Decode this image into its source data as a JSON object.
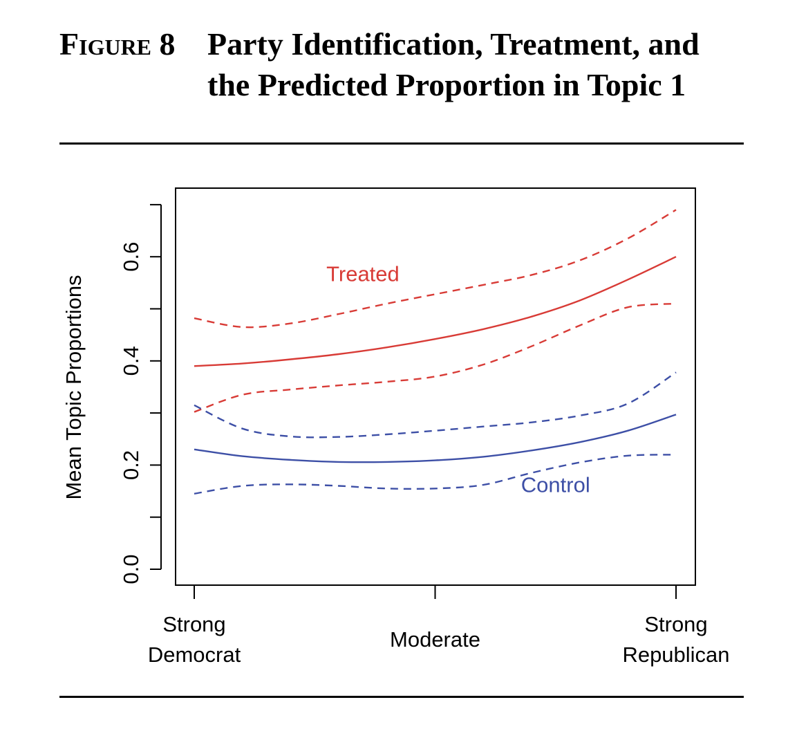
{
  "figure": {
    "label_first": "F",
    "label_smallcaps": "igure",
    "label_number": " 8",
    "title": "Party Identification, Treatment, and the Predicted Proportion in Topic 1"
  },
  "chart_data": {
    "type": "line",
    "title": "",
    "xlabel": "",
    "ylabel": "Mean Topic Proportions",
    "xlim": [
      0,
      1
    ],
    "ylim": [
      0,
      0.7
    ],
    "x_ticks": [
      {
        "value": 0.0,
        "lines": [
          "Strong",
          "Democrat"
        ]
      },
      {
        "value": 0.5,
        "lines": [
          "Moderate"
        ]
      },
      {
        "value": 1.0,
        "lines": [
          "Strong",
          "Republican"
        ]
      }
    ],
    "y_ticks": [
      0,
      0.1,
      0.2,
      0.3,
      0.4,
      0.5,
      0.6,
      0.7
    ],
    "y_tick_labels": [
      {
        "value": 0.0,
        "label": "0.0"
      },
      {
        "value": 0.2,
        "label": "0.2"
      },
      {
        "value": 0.4,
        "label": "0.4"
      },
      {
        "value": 0.6,
        "label": "0.6"
      }
    ],
    "grid": false,
    "legend": "none (inline labels)",
    "colors": {
      "treated": "#d83b36",
      "control": "#3d4fa6"
    },
    "x": [
      0.0,
      0.1,
      0.2,
      0.3,
      0.4,
      0.5,
      0.6,
      0.7,
      0.8,
      0.9,
      1.0
    ],
    "series": [
      {
        "group": "treated",
        "kind": "estimate",
        "values": [
          0.39,
          0.395,
          0.403,
          0.413,
          0.426,
          0.442,
          0.461,
          0.485,
          0.516,
          0.556,
          0.6
        ]
      },
      {
        "group": "treated",
        "kind": "upper",
        "values": [
          0.482,
          0.465,
          0.472,
          0.49,
          0.51,
          0.528,
          0.546,
          0.565,
          0.593,
          0.635,
          0.69
        ]
      },
      {
        "group": "treated",
        "kind": "lower",
        "values": [
          0.302,
          0.335,
          0.345,
          0.353,
          0.36,
          0.37,
          0.393,
          0.428,
          0.468,
          0.503,
          0.51
        ]
      },
      {
        "group": "control",
        "kind": "estimate",
        "values": [
          0.23,
          0.217,
          0.21,
          0.206,
          0.206,
          0.209,
          0.216,
          0.228,
          0.244,
          0.266,
          0.297
        ]
      },
      {
        "group": "control",
        "kind": "upper",
        "values": [
          0.315,
          0.27,
          0.255,
          0.254,
          0.259,
          0.266,
          0.274,
          0.282,
          0.295,
          0.318,
          0.378
        ]
      },
      {
        "group": "control",
        "kind": "lower",
        "values": [
          0.145,
          0.16,
          0.163,
          0.16,
          0.155,
          0.155,
          0.162,
          0.185,
          0.205,
          0.218,
          0.22
        ]
      }
    ],
    "annotations": [
      {
        "text": "Treated",
        "group": "treated",
        "x": 0.35,
        "y": 0.553
      },
      {
        "text": "Control",
        "group": "control",
        "x": 0.75,
        "y": 0.148
      }
    ]
  }
}
